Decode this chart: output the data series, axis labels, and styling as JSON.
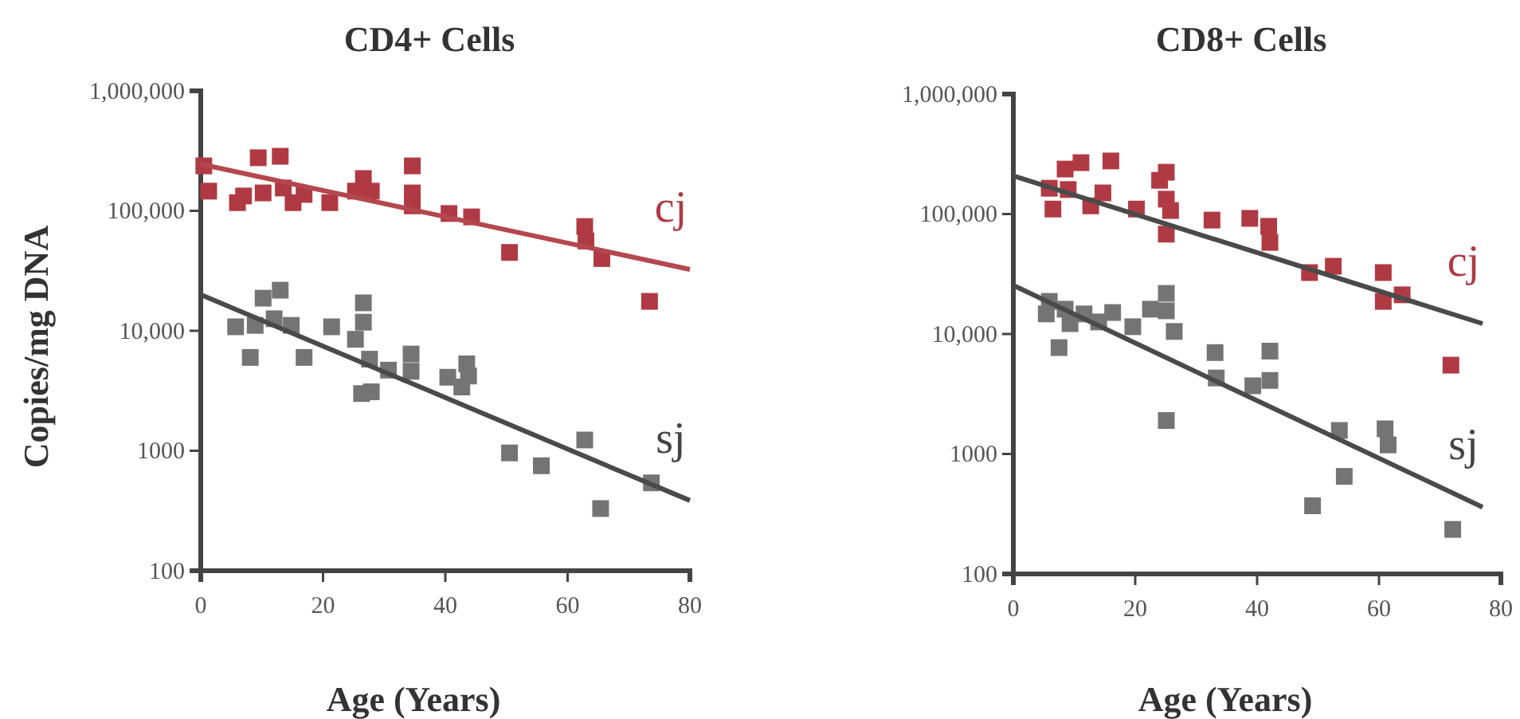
{
  "chart_data": [
    {
      "type": "scatter",
      "title": "CD4+ Cells",
      "xlabel": "Age (Years)",
      "ylabel": "Copies/mg DNA",
      "log": "y",
      "grid": false,
      "xlim": [
        0,
        80
      ],
      "xticks": [
        0,
        20,
        40,
        60,
        80
      ],
      "ylim": [
        100,
        1000000
      ],
      "yticks": [
        {
          "value": 1000000,
          "label": "1,000,000"
        },
        {
          "value": 100000,
          "label": "100,000"
        },
        {
          "value": 10000,
          "label": "10,000"
        },
        {
          "value": 1000,
          "label": "1000"
        },
        100
      ],
      "series": [
        {
          "name": "cj",
          "marker": "square",
          "color": "#b03a44",
          "x": [
            0.5,
            1.3,
            6.0,
            7.0,
            9.4,
            10.2,
            13.0,
            13.5,
            15.1,
            16.9,
            21.1,
            25.3,
            26.6,
            27.9,
            34.6,
            34.6,
            34.6,
            40.6,
            44.3,
            50.5,
            62.8,
            63.0,
            65.6,
            73.4
          ],
          "values": [
            237000,
            146000,
            117000,
            133000,
            277000,
            141000,
            285000,
            155000,
            117000,
            137000,
            117000,
            146000,
            186000,
            146000,
            237000,
            141000,
            110000,
            95000,
            89000,
            45000,
            74000,
            56000,
            40000,
            17600
          ]
        },
        {
          "type": "line",
          "color": "#b5474e",
          "x": [
            0,
            80
          ],
          "values": [
            245000,
            32500
          ]
        },
        {
          "name": "sj",
          "marker": "square",
          "color": "#747474",
          "x": [
            5.7,
            8.9,
            10.2,
            13.0,
            12.0,
            14.8,
            8.1,
            16.9,
            21.4,
            25.3,
            26.6,
            26.6,
            27.6,
            26.3,
            27.9,
            30.7,
            34.4,
            34.4,
            40.4,
            42.7,
            43.5,
            43.8,
            50.5,
            55.7,
            62.8,
            65.4,
            73.7
          ],
          "values": [
            10800,
            11100,
            18700,
            21800,
            12600,
            11100,
            6000,
            6000,
            10800,
            8500,
            17100,
            11800,
            5800,
            3000,
            3100,
            4700,
            6400,
            4600,
            4100,
            3400,
            5300,
            4200,
            960,
            750,
            1230,
            330,
            540
          ]
        },
        {
          "type": "line",
          "color": "#4a4a4a",
          "x": [
            0,
            80
          ],
          "values": [
            20000,
            385
          ]
        }
      ]
    },
    {
      "type": "scatter",
      "title": "CD8+ Cells",
      "xlabel": "Age (Years)",
      "log": "y",
      "grid": false,
      "xlim": [
        0,
        80
      ],
      "xticks": [
        0,
        20,
        40,
        60,
        80
      ],
      "ylim": [
        100,
        1000000
      ],
      "yticks": [
        {
          "value": 1000000,
          "label": "1,000,000"
        },
        {
          "value": 100000,
          "label": "100,000"
        },
        {
          "value": 10000,
          "label": "10,000"
        },
        {
          "value": 1000,
          "label": "1000"
        },
        100
      ],
      "series": [
        {
          "name": "cj",
          "marker": "square",
          "color": "#b03a44",
          "x": [
            5.9,
            6.5,
            8.5,
            9.0,
            11.1,
            12.7,
            14.7,
            16.0,
            20.2,
            24.0,
            25.1,
            25.1,
            25.8,
            25.1,
            32.6,
            38.8,
            41.9,
            42.1,
            48.6,
            52.5,
            60.7,
            60.7,
            63.8,
            71.8
          ],
          "values": [
            164000,
            110000,
            237000,
            160000,
            268000,
            117000,
            150000,
            277000,
            110000,
            191000,
            223000,
            133000,
            107000,
            68000,
            89000,
            92000,
            79000,
            58000,
            32500,
            36700,
            32500,
            18700,
            21200,
            5500
          ]
        },
        {
          "type": "line",
          "color": "#4a4a4a",
          "x": [
            0,
            77
          ],
          "values": [
            208000,
            12200
          ]
        },
        {
          "name": "sj",
          "marker": "square",
          "color": "#747474",
          "x": [
            5.4,
            5.9,
            8.5,
            9.3,
            11.6,
            14.0,
            16.3,
            7.5,
            19.6,
            22.5,
            25.1,
            25.1,
            26.4,
            25.1,
            33.1,
            33.3,
            39.3,
            42.1,
            42.1,
            53.5,
            54.3,
            49.1,
            61.0,
            61.5,
            72.1
          ],
          "values": [
            14700,
            18700,
            16100,
            12200,
            14700,
            12600,
            15100,
            7700,
            11500,
            16100,
            21800,
            15600,
            10500,
            1900,
            7000,
            4300,
            3700,
            7200,
            4100,
            1570,
            650,
            370,
            1620,
            1190,
            235
          ]
        },
        {
          "type": "line",
          "color": "#4a4a4a",
          "x": [
            0,
            77
          ],
          "values": [
            25400,
            360
          ]
        }
      ]
    }
  ]
}
